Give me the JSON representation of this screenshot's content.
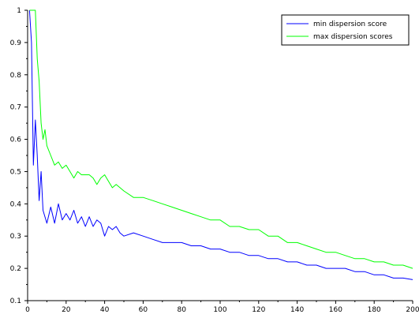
{
  "chart_data": {
    "type": "line",
    "title": "",
    "xlabel": "",
    "ylabel": "",
    "xlim": [
      0,
      200
    ],
    "ylim": [
      0.1,
      1.0
    ],
    "x_ticks": [
      "0",
      "20",
      "40",
      "60",
      "80",
      "100",
      "120",
      "140",
      "160",
      "180",
      "200"
    ],
    "y_ticks": [
      "0.1",
      "0.2",
      "0.3",
      "0.4",
      "0.5",
      "0.6",
      "0.7",
      "0.8",
      "0.9",
      "1"
    ],
    "legend_position": "top-right",
    "grid": false,
    "series": [
      {
        "name": "min dispersion score",
        "color": "#0000ff",
        "x": [
          1,
          2,
          3,
          4,
          5,
          6,
          7,
          8,
          10,
          12,
          14,
          16,
          18,
          20,
          22,
          24,
          26,
          28,
          30,
          32,
          34,
          36,
          38,
          40,
          42,
          44,
          46,
          48,
          50,
          55,
          60,
          65,
          70,
          75,
          80,
          85,
          90,
          95,
          100,
          105,
          110,
          115,
          120,
          125,
          130,
          135,
          140,
          145,
          150,
          155,
          160,
          165,
          170,
          175,
          180,
          185,
          190,
          195,
          200
        ],
        "y": [
          1.0,
          0.9,
          0.52,
          0.66,
          0.55,
          0.41,
          0.5,
          0.38,
          0.34,
          0.39,
          0.34,
          0.4,
          0.35,
          0.37,
          0.35,
          0.38,
          0.34,
          0.36,
          0.33,
          0.36,
          0.33,
          0.35,
          0.34,
          0.3,
          0.33,
          0.32,
          0.33,
          0.31,
          0.3,
          0.31,
          0.3,
          0.29,
          0.28,
          0.28,
          0.28,
          0.27,
          0.27,
          0.26,
          0.26,
          0.25,
          0.25,
          0.24,
          0.24,
          0.23,
          0.23,
          0.22,
          0.22,
          0.21,
          0.21,
          0.2,
          0.2,
          0.2,
          0.19,
          0.19,
          0.18,
          0.18,
          0.17,
          0.17,
          0.165
        ]
      },
      {
        "name": "max dispersion scores",
        "color": "#00ff00",
        "x": [
          1,
          2,
          3,
          4,
          5,
          6,
          7,
          8,
          9,
          10,
          12,
          14,
          16,
          18,
          20,
          22,
          24,
          26,
          28,
          30,
          32,
          34,
          36,
          38,
          40,
          42,
          44,
          46,
          48,
          50,
          55,
          60,
          65,
          70,
          75,
          80,
          85,
          90,
          95,
          100,
          105,
          110,
          115,
          120,
          125,
          130,
          135,
          140,
          145,
          150,
          155,
          160,
          165,
          170,
          175,
          180,
          185,
          190,
          195,
          200
        ],
        "y": [
          1.0,
          1.0,
          1.0,
          1.0,
          0.85,
          0.78,
          0.65,
          0.6,
          0.63,
          0.58,
          0.55,
          0.52,
          0.53,
          0.51,
          0.52,
          0.5,
          0.48,
          0.5,
          0.49,
          0.49,
          0.49,
          0.48,
          0.46,
          0.48,
          0.49,
          0.47,
          0.45,
          0.46,
          0.45,
          0.44,
          0.42,
          0.42,
          0.41,
          0.4,
          0.39,
          0.38,
          0.37,
          0.36,
          0.35,
          0.35,
          0.33,
          0.33,
          0.32,
          0.32,
          0.3,
          0.3,
          0.28,
          0.28,
          0.27,
          0.26,
          0.25,
          0.25,
          0.24,
          0.23,
          0.23,
          0.22,
          0.22,
          0.21,
          0.21,
          0.2
        ]
      }
    ]
  }
}
